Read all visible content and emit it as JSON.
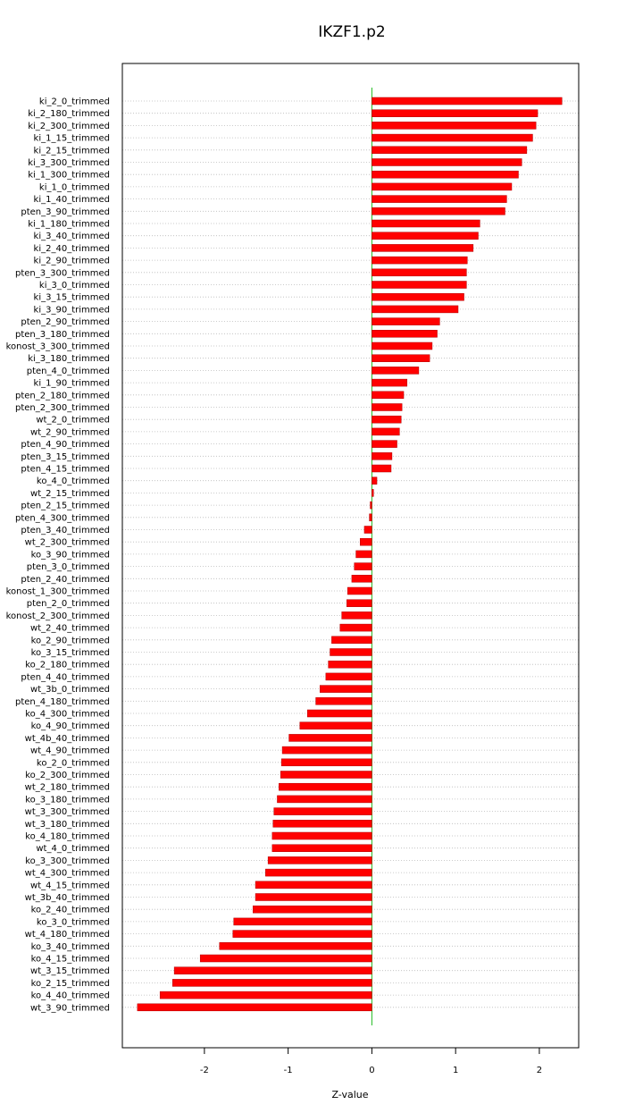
{
  "chart_data": {
    "type": "bar",
    "orientation": "horizontal",
    "title": "IKZF1.p2",
    "xlabel": "Z-value",
    "ylabel": "",
    "xlim": [
      -2.98,
      2.47
    ],
    "x_ticks": [
      -2,
      -1,
      0,
      1,
      2
    ],
    "x_tick_labels": [
      "-2",
      "-1",
      "0",
      "1",
      "2"
    ],
    "grid": "horizontal dotted lines at each category",
    "reference_line": 0,
    "colors": {
      "bar_fill": "#ff0000",
      "bar_stroke": "#b00000",
      "zero_line": "#22bb22",
      "grid": "#bbbbbb",
      "frame": "#000000"
    },
    "categories": [
      "ki_2_0_trimmed",
      "ki_2_180_trimmed",
      "ki_2_300_trimmed",
      "ki_1_15_trimmed",
      "ki_2_15_trimmed",
      "ki_3_300_trimmed",
      "ki_1_300_trimmed",
      "ki_1_0_trimmed",
      "ki_1_40_trimmed",
      "pten_3_90_trimmed",
      "ki_1_180_trimmed",
      "ki_3_40_trimmed",
      "ki_2_40_trimmed",
      "ki_2_90_trimmed",
      "pten_3_300_trimmed",
      "ki_3_0_trimmed",
      "ki_3_15_trimmed",
      "ki_3_90_trimmed",
      "pten_2_90_trimmed",
      "pten_3_180_trimmed",
      "konost_3_300_trimmed",
      "ki_3_180_trimmed",
      "pten_4_0_trimmed",
      "ki_1_90_trimmed",
      "pten_2_180_trimmed",
      "pten_2_300_trimmed",
      "wt_2_0_trimmed",
      "wt_2_90_trimmed",
      "pten_4_90_trimmed",
      "pten_3_15_trimmed",
      "pten_4_15_trimmed",
      "ko_4_0_trimmed",
      "wt_2_15_trimmed",
      "pten_2_15_trimmed",
      "pten_4_300_trimmed",
      "pten_3_40_trimmed",
      "wt_2_300_trimmed",
      "ko_3_90_trimmed",
      "pten_3_0_trimmed",
      "pten_2_40_trimmed",
      "konost_1_300_trimmed",
      "pten_2_0_trimmed",
      "konost_2_300_trimmed",
      "wt_2_40_trimmed",
      "ko_2_90_trimmed",
      "ko_3_15_trimmed",
      "ko_2_180_trimmed",
      "pten_4_40_trimmed",
      "wt_3b_0_trimmed",
      "pten_4_180_trimmed",
      "ko_4_300_trimmed",
      "ko_4_90_trimmed",
      "wt_4b_40_trimmed",
      "wt_4_90_trimmed",
      "ko_2_0_trimmed",
      "ko_2_300_trimmed",
      "wt_2_180_trimmed",
      "ko_3_180_trimmed",
      "wt_3_300_trimmed",
      "wt_3_180_trimmed",
      "ko_4_180_trimmed",
      "wt_4_0_trimmed",
      "ko_3_300_trimmed",
      "wt_4_300_trimmed",
      "wt_4_15_trimmed",
      "wt_3b_40_trimmed",
      "ko_2_40_trimmed",
      "ko_3_0_trimmed",
      "wt_4_180_trimmed",
      "ko_3_40_trimmed",
      "ko_4_15_trimmed",
      "wt_3_15_trimmed",
      "ko_2_15_trimmed",
      "ko_4_40_trimmed",
      "wt_3_90_trimmed"
    ],
    "values": [
      2.27,
      1.98,
      1.96,
      1.92,
      1.85,
      1.79,
      1.75,
      1.67,
      1.61,
      1.59,
      1.29,
      1.27,
      1.21,
      1.14,
      1.13,
      1.13,
      1.1,
      1.03,
      0.81,
      0.78,
      0.72,
      0.69,
      0.56,
      0.42,
      0.38,
      0.36,
      0.35,
      0.33,
      0.3,
      0.24,
      0.23,
      0.06,
      0.02,
      -0.02,
      -0.03,
      -0.09,
      -0.14,
      -0.19,
      -0.21,
      -0.24,
      -0.29,
      -0.3,
      -0.36,
      -0.38,
      -0.48,
      -0.5,
      -0.52,
      -0.55,
      -0.62,
      -0.67,
      -0.77,
      -0.86,
      -0.99,
      -1.07,
      -1.08,
      -1.09,
      -1.11,
      -1.13,
      -1.17,
      -1.18,
      -1.19,
      -1.19,
      -1.24,
      -1.27,
      -1.39,
      -1.39,
      -1.42,
      -1.65,
      -1.66,
      -1.82,
      -2.05,
      -2.36,
      -2.38,
      -2.53,
      -2.8
    ]
  }
}
